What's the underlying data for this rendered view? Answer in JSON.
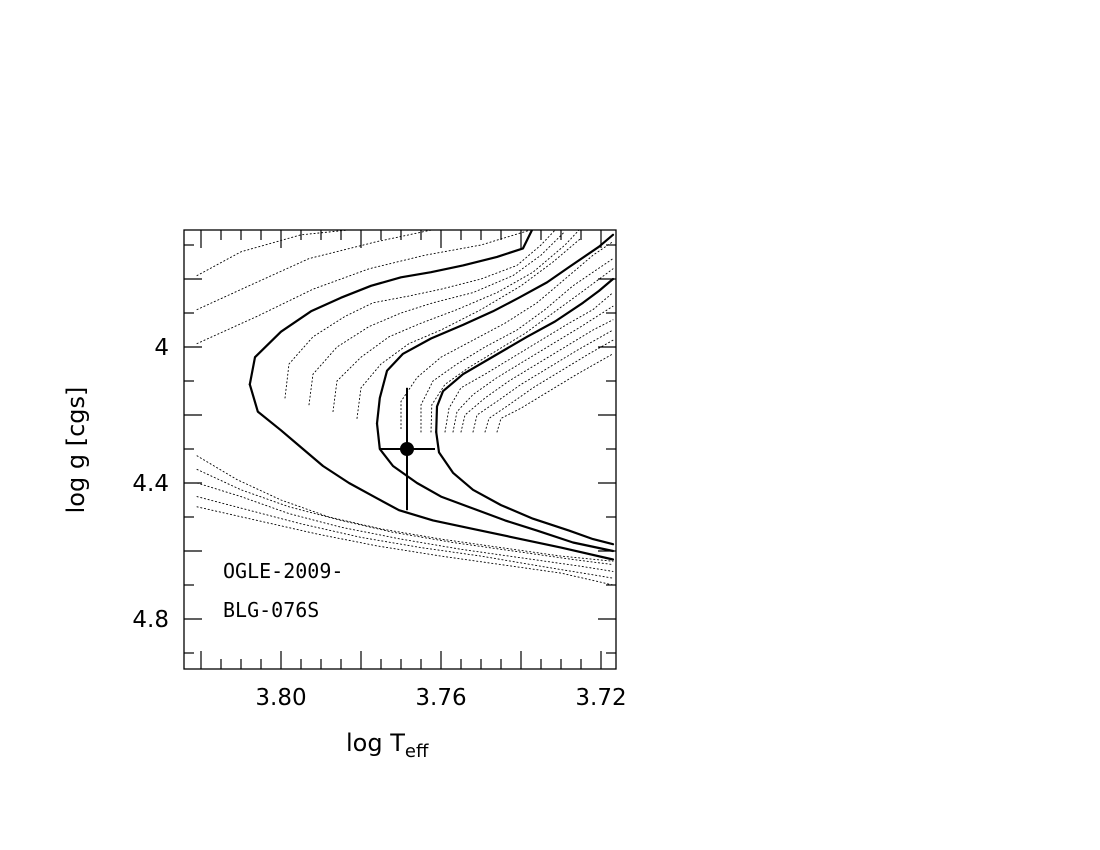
{
  "chart_data": {
    "type": "line",
    "xlabel": "log  T",
    "xlabel_sub": "eff",
    "ylabel": "log  g  [cgs]",
    "xlim": [
      3.82,
      3.717
    ],
    "ylim": [
      4.95,
      3.65
    ],
    "x_reversed": true,
    "y_reversed": true,
    "x_ticks": [
      3.8,
      3.76,
      3.72
    ],
    "x_tick_labels": [
      "3.80",
      "3.76",
      "3.72"
    ],
    "y_ticks": [
      4.0,
      4.4,
      4.8
    ],
    "y_tick_labels": [
      "4",
      "4.4",
      "4.8"
    ],
    "annotation": [
      "OGLE-2009-",
      "BLG-076S"
    ],
    "point": {
      "x": 3.7685,
      "y": 4.3,
      "xerr": 0.007,
      "yerr": 0.18
    },
    "series": [
      {
        "style": "dotted",
        "points": [
          [
            3.821,
            3.79
          ],
          [
            3.81,
            3.72
          ],
          [
            3.795,
            3.67
          ],
          [
            3.778,
            3.65
          ]
        ]
      },
      {
        "style": "dotted",
        "points": [
          [
            3.821,
            3.89
          ],
          [
            3.808,
            3.82
          ],
          [
            3.793,
            3.74
          ],
          [
            3.776,
            3.69
          ],
          [
            3.76,
            3.65
          ]
        ]
      },
      {
        "style": "dotted",
        "points": [
          [
            3.821,
            3.99
          ],
          [
            3.806,
            3.91
          ],
          [
            3.792,
            3.83
          ],
          [
            3.778,
            3.77
          ],
          [
            3.764,
            3.73
          ],
          [
            3.75,
            3.7
          ],
          [
            3.736,
            3.65
          ]
        ]
      },
      {
        "style": "solid",
        "points": [
          [
            3.8078,
            4.11
          ],
          [
            3.8065,
            4.03
          ],
          [
            3.8,
            3.955
          ],
          [
            3.7925,
            3.895
          ],
          [
            3.785,
            3.855
          ],
          [
            3.7775,
            3.82
          ],
          [
            3.77,
            3.795
          ],
          [
            3.7625,
            3.78
          ],
          [
            3.7545,
            3.76
          ],
          [
            3.746,
            3.735
          ],
          [
            3.7395,
            3.71
          ],
          [
            3.737,
            3.65
          ]
        ]
      },
      {
        "style": "dotted",
        "points": [
          [
            3.799,
            4.15
          ],
          [
            3.798,
            4.05
          ],
          [
            3.792,
            3.97
          ],
          [
            3.784,
            3.91
          ],
          [
            3.777,
            3.87
          ],
          [
            3.768,
            3.85
          ],
          [
            3.76,
            3.83
          ],
          [
            3.75,
            3.8
          ],
          [
            3.741,
            3.76
          ],
          [
            3.735,
            3.7
          ],
          [
            3.731,
            3.65
          ]
        ]
      },
      {
        "style": "dotted",
        "points": [
          [
            3.793,
            4.17
          ],
          [
            3.792,
            4.08
          ],
          [
            3.786,
            4.0
          ],
          [
            3.778,
            3.94
          ],
          [
            3.77,
            3.9
          ],
          [
            3.762,
            3.87
          ],
          [
            3.752,
            3.84
          ],
          [
            3.742,
            3.79
          ],
          [
            3.735,
            3.73
          ],
          [
            3.729,
            3.66
          ]
        ]
      },
      {
        "style": "dotted",
        "points": [
          [
            3.787,
            4.19
          ],
          [
            3.786,
            4.1
          ],
          [
            3.78,
            4.03
          ],
          [
            3.773,
            3.97
          ],
          [
            3.765,
            3.93
          ],
          [
            3.756,
            3.89
          ],
          [
            3.746,
            3.84
          ],
          [
            3.737,
            3.78
          ],
          [
            3.729,
            3.7
          ],
          [
            3.725,
            3.65
          ]
        ]
      },
      {
        "style": "dotted",
        "points": [
          [
            3.781,
            4.21
          ],
          [
            3.78,
            4.12
          ],
          [
            3.775,
            4.05
          ],
          [
            3.768,
            3.99
          ],
          [
            3.76,
            3.95
          ],
          [
            3.75,
            3.89
          ],
          [
            3.74,
            3.82
          ],
          [
            3.732,
            3.75
          ],
          [
            3.725,
            3.68
          ]
        ]
      },
      {
        "style": "solid",
        "points": [
          [
            3.776,
            4.225
          ],
          [
            3.7753,
            4.15
          ],
          [
            3.7735,
            4.07
          ],
          [
            3.7695,
            4.02
          ],
          [
            3.7625,
            3.975
          ],
          [
            3.7545,
            3.935
          ],
          [
            3.747,
            3.895
          ],
          [
            3.7405,
            3.855
          ],
          [
            3.7335,
            3.81
          ],
          [
            3.728,
            3.765
          ],
          [
            3.7205,
            3.705
          ],
          [
            3.717,
            3.67
          ]
        ]
      },
      {
        "style": "dotted",
        "points": [
          [
            3.77,
            4.24
          ],
          [
            3.77,
            4.16
          ],
          [
            3.766,
            4.09
          ],
          [
            3.76,
            4.03
          ],
          [
            3.752,
            3.98
          ],
          [
            3.744,
            3.93
          ],
          [
            3.736,
            3.87
          ],
          [
            3.729,
            3.8
          ],
          [
            3.722,
            3.73
          ],
          [
            3.717,
            3.69
          ]
        ]
      },
      {
        "style": "dotted",
        "points": [
          [
            3.765,
            4.25
          ],
          [
            3.765,
            4.17
          ],
          [
            3.762,
            4.1
          ],
          [
            3.756,
            4.05
          ],
          [
            3.749,
            4.0
          ],
          [
            3.741,
            3.95
          ],
          [
            3.734,
            3.89
          ],
          [
            3.727,
            3.82
          ],
          [
            3.717,
            3.74
          ]
        ]
      },
      {
        "style": "dotted",
        "points": [
          [
            3.7625,
            4.25
          ],
          [
            3.7623,
            4.17
          ],
          [
            3.759,
            4.11
          ],
          [
            3.753,
            4.06
          ],
          [
            3.746,
            4.01
          ],
          [
            3.739,
            3.96
          ],
          [
            3.732,
            3.9
          ],
          [
            3.725,
            3.84
          ],
          [
            3.717,
            3.77
          ]
        ]
      },
      {
        "style": "solid",
        "points": [
          [
            3.7612,
            4.25
          ],
          [
            3.761,
            4.175
          ],
          [
            3.7595,
            4.13
          ],
          [
            3.7545,
            4.08
          ],
          [
            3.7465,
            4.025
          ],
          [
            3.7385,
            3.97
          ],
          [
            3.7315,
            3.925
          ],
          [
            3.7245,
            3.87
          ],
          [
            3.7205,
            3.835
          ],
          [
            3.717,
            3.8
          ]
        ]
      },
      {
        "style": "dotted",
        "points": [
          [
            3.759,
            4.25
          ],
          [
            3.758,
            4.18
          ],
          [
            3.755,
            4.12
          ],
          [
            3.749,
            4.08
          ],
          [
            3.742,
            4.03
          ],
          [
            3.735,
            3.98
          ],
          [
            3.728,
            3.93
          ],
          [
            3.722,
            3.89
          ],
          [
            3.717,
            3.84
          ]
        ]
      },
      {
        "style": "dotted",
        "points": [
          [
            3.757,
            4.25
          ],
          [
            3.756,
            4.19
          ],
          [
            3.752,
            4.14
          ],
          [
            3.746,
            4.09
          ],
          [
            3.739,
            4.04
          ],
          [
            3.732,
            3.99
          ],
          [
            3.725,
            3.94
          ],
          [
            3.717,
            3.88
          ]
        ]
      },
      {
        "style": "dotted",
        "points": [
          [
            3.755,
            4.25
          ],
          [
            3.754,
            4.2
          ],
          [
            3.749,
            4.15
          ],
          [
            3.743,
            4.1
          ],
          [
            3.736,
            4.05
          ],
          [
            3.729,
            4.0
          ],
          [
            3.722,
            3.95
          ],
          [
            3.717,
            3.92
          ]
        ]
      },
      {
        "style": "dotted",
        "points": [
          [
            3.752,
            4.25
          ],
          [
            3.751,
            4.2
          ],
          [
            3.746,
            4.16
          ],
          [
            3.74,
            4.11
          ],
          [
            3.733,
            4.06
          ],
          [
            3.726,
            4.01
          ],
          [
            3.717,
            3.95
          ]
        ]
      },
      {
        "style": "dotted",
        "points": [
          [
            3.749,
            4.25
          ],
          [
            3.748,
            4.21
          ],
          [
            3.743,
            4.17
          ],
          [
            3.737,
            4.12
          ],
          [
            3.73,
            4.07
          ],
          [
            3.723,
            4.02
          ],
          [
            3.717,
            3.98
          ]
        ]
      },
      {
        "style": "dotted",
        "points": [
          [
            3.746,
            4.25
          ],
          [
            3.745,
            4.21
          ],
          [
            3.74,
            4.18
          ],
          [
            3.733,
            4.13
          ],
          [
            3.726,
            4.08
          ],
          [
            3.717,
            4.02
          ]
        ]
      },
      {
        "style": "dotted",
        "points": [
          [
            3.821,
            4.32
          ],
          [
            3.811,
            4.39
          ],
          [
            3.8,
            4.45
          ],
          [
            3.788,
            4.5
          ],
          [
            3.775,
            4.535
          ],
          [
            3.76,
            4.565
          ],
          [
            3.745,
            4.59
          ],
          [
            3.73,
            4.615
          ],
          [
            3.717,
            4.63
          ]
        ]
      },
      {
        "style": "dotted",
        "points": [
          [
            3.821,
            4.36
          ],
          [
            3.81,
            4.42
          ],
          [
            3.798,
            4.47
          ],
          [
            3.785,
            4.51
          ],
          [
            3.772,
            4.545
          ],
          [
            3.757,
            4.575
          ],
          [
            3.742,
            4.6
          ],
          [
            3.727,
            4.625
          ],
          [
            3.717,
            4.64
          ]
        ]
      },
      {
        "style": "dotted",
        "points": [
          [
            3.821,
            4.4
          ],
          [
            3.81,
            4.44
          ],
          [
            3.798,
            4.49
          ],
          [
            3.785,
            4.53
          ],
          [
            3.77,
            4.565
          ],
          [
            3.755,
            4.595
          ],
          [
            3.74,
            4.62
          ],
          [
            3.725,
            4.645
          ],
          [
            3.717,
            4.66
          ]
        ]
      },
      {
        "style": "dotted",
        "points": [
          [
            3.821,
            4.44
          ],
          [
            3.808,
            4.48
          ],
          [
            3.795,
            4.52
          ],
          [
            3.78,
            4.56
          ],
          [
            3.765,
            4.59
          ],
          [
            3.75,
            4.615
          ],
          [
            3.735,
            4.645
          ],
          [
            3.722,
            4.67
          ],
          [
            3.717,
            4.68
          ]
        ]
      },
      {
        "style": "dotted",
        "points": [
          [
            3.821,
            4.47
          ],
          [
            3.806,
            4.51
          ],
          [
            3.791,
            4.55
          ],
          [
            3.776,
            4.585
          ],
          [
            3.76,
            4.615
          ],
          [
            3.745,
            4.64
          ],
          [
            3.73,
            4.665
          ],
          [
            3.717,
            4.7
          ]
        ]
      },
      {
        "style": "solid",
        "points": [
          [
            3.8078,
            4.11
          ],
          [
            3.8058,
            4.19
          ],
          [
            3.8,
            4.245
          ],
          [
            3.7955,
            4.29
          ],
          [
            3.7895,
            4.35
          ],
          [
            3.783,
            4.4
          ],
          [
            3.776,
            4.445
          ],
          [
            3.7705,
            4.48
          ],
          [
            3.762,
            4.51
          ],
          [
            3.752,
            4.535
          ],
          [
            3.742,
            4.56
          ],
          [
            3.73,
            4.59
          ],
          [
            3.717,
            4.625
          ]
        ]
      },
      {
        "style": "solid",
        "points": [
          [
            3.776,
            4.225
          ],
          [
            3.7753,
            4.3
          ],
          [
            3.772,
            4.35
          ],
          [
            3.766,
            4.4
          ],
          [
            3.76,
            4.44
          ],
          [
            3.752,
            4.475
          ],
          [
            3.744,
            4.51
          ],
          [
            3.736,
            4.54
          ],
          [
            3.727,
            4.575
          ],
          [
            3.717,
            4.6
          ]
        ]
      },
      {
        "style": "solid",
        "points": [
          [
            3.7612,
            4.25
          ],
          [
            3.7605,
            4.31
          ],
          [
            3.757,
            4.37
          ],
          [
            3.752,
            4.42
          ],
          [
            3.745,
            4.465
          ],
          [
            3.737,
            4.505
          ],
          [
            3.728,
            4.54
          ],
          [
            3.722,
            4.565
          ],
          [
            3.717,
            4.58
          ]
        ]
      }
    ]
  }
}
